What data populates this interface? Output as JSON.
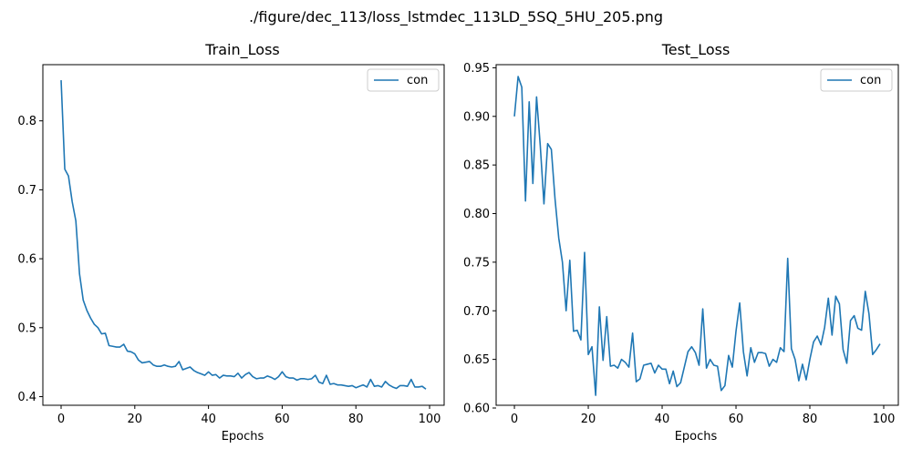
{
  "figure_title": "./figure/dec_113/loss_lstmdec_113LD_5SQ_5HU_205.png",
  "chart_data": [
    {
      "type": "line",
      "title": "Train_Loss",
      "xlabel": "Epochs",
      "ylabel": "",
      "xlim": [
        -4.95,
        103.95
      ],
      "ylim": [
        0.3875,
        0.8815
      ],
      "xticks": [
        0,
        20,
        40,
        60,
        80,
        100
      ],
      "yticks": [
        0.4,
        0.5,
        0.6,
        0.7,
        0.8
      ],
      "ytick_labels": [
        "0.4",
        "0.5",
        "0.6",
        "0.7",
        "0.8"
      ],
      "legend_position": "upper right",
      "line_color": "#1f77b4",
      "series": [
        {
          "name": "con",
          "x": [
            0,
            1,
            2,
            3,
            4,
            5,
            6,
            7,
            8,
            9,
            10,
            11,
            12,
            13,
            14,
            15,
            16,
            17,
            18,
            19,
            20,
            21,
            22,
            23,
            24,
            25,
            26,
            27,
            28,
            29,
            30,
            31,
            32,
            33,
            34,
            35,
            36,
            37,
            38,
            39,
            40,
            41,
            42,
            43,
            44,
            45,
            46,
            47,
            48,
            49,
            50,
            51,
            52,
            53,
            54,
            55,
            56,
            57,
            58,
            59,
            60,
            61,
            62,
            63,
            64,
            65,
            66,
            67,
            68,
            69,
            70,
            71,
            72,
            73,
            74,
            75,
            76,
            77,
            78,
            79,
            80,
            81,
            82,
            83,
            84,
            85,
            86,
            87,
            88,
            89,
            90,
            91,
            92,
            93,
            94,
            95,
            96,
            97,
            98,
            99
          ],
          "values": [
            0.859,
            0.73,
            0.72,
            0.683,
            0.655,
            0.578,
            0.54,
            0.525,
            0.514,
            0.505,
            0.5,
            0.491,
            0.492,
            0.474,
            0.473,
            0.472,
            0.472,
            0.476,
            0.466,
            0.465,
            0.462,
            0.453,
            0.449,
            0.45,
            0.451,
            0.446,
            0.444,
            0.444,
            0.446,
            0.444,
            0.443,
            0.444,
            0.451,
            0.439,
            0.441,
            0.443,
            0.438,
            0.435,
            0.433,
            0.431,
            0.436,
            0.431,
            0.432,
            0.427,
            0.431,
            0.43,
            0.43,
            0.429,
            0.434,
            0.427,
            0.432,
            0.435,
            0.429,
            0.426,
            0.427,
            0.427,
            0.43,
            0.428,
            0.425,
            0.429,
            0.436,
            0.429,
            0.427,
            0.427,
            0.424,
            0.426,
            0.426,
            0.425,
            0.426,
            0.431,
            0.421,
            0.419,
            0.431,
            0.418,
            0.419,
            0.417,
            0.417,
            0.416,
            0.415,
            0.416,
            0.413,
            0.415,
            0.417,
            0.414,
            0.425,
            0.415,
            0.416,
            0.414,
            0.422,
            0.417,
            0.414,
            0.412,
            0.416,
            0.416,
            0.415,
            0.425,
            0.414,
            0.414,
            0.415,
            0.411
          ]
        }
      ]
    },
    {
      "type": "line",
      "title": "Test_Loss",
      "xlabel": "Epochs",
      "ylabel": "",
      "xlim": [
        -4.95,
        103.95
      ],
      "ylim": [
        0.6028,
        0.9532
      ],
      "xticks": [
        0,
        20,
        40,
        60,
        80,
        100
      ],
      "yticks": [
        0.6,
        0.65,
        0.7,
        0.75,
        0.8,
        0.85,
        0.9,
        0.95
      ],
      "ytick_labels": [
        "0.60",
        "0.65",
        "0.70",
        "0.75",
        "0.80",
        "0.85",
        "0.90",
        "0.95"
      ],
      "legend_position": "upper right",
      "line_color": "#1f77b4",
      "series": [
        {
          "name": "con",
          "x": [
            0,
            1,
            2,
            3,
            4,
            5,
            6,
            7,
            8,
            9,
            10,
            11,
            12,
            13,
            14,
            15,
            16,
            17,
            18,
            19,
            20,
            21,
            22,
            23,
            24,
            25,
            26,
            27,
            28,
            29,
            30,
            31,
            32,
            33,
            34,
            35,
            36,
            37,
            38,
            39,
            40,
            41,
            42,
            43,
            44,
            45,
            46,
            47,
            48,
            49,
            50,
            51,
            52,
            53,
            54,
            55,
            56,
            57,
            58,
            59,
            60,
            61,
            62,
            63,
            64,
            65,
            66,
            67,
            68,
            69,
            70,
            71,
            72,
            73,
            74,
            75,
            76,
            77,
            78,
            79,
            80,
            81,
            82,
            83,
            84,
            85,
            86,
            87,
            88,
            89,
            90,
            91,
            92,
            93,
            94,
            95,
            96,
            97,
            98,
            99
          ],
          "values": [
            0.9,
            0.941,
            0.93,
            0.813,
            0.915,
            0.831,
            0.92,
            0.87,
            0.81,
            0.872,
            0.866,
            0.815,
            0.775,
            0.75,
            0.7,
            0.752,
            0.679,
            0.68,
            0.67,
            0.76,
            0.655,
            0.663,
            0.613,
            0.704,
            0.649,
            0.694,
            0.643,
            0.644,
            0.641,
            0.65,
            0.647,
            0.642,
            0.677,
            0.627,
            0.63,
            0.644,
            0.645,
            0.646,
            0.636,
            0.644,
            0.64,
            0.64,
            0.625,
            0.638,
            0.622,
            0.626,
            0.642,
            0.658,
            0.663,
            0.657,
            0.644,
            0.702,
            0.641,
            0.65,
            0.644,
            0.643,
            0.618,
            0.623,
            0.654,
            0.642,
            0.679,
            0.708,
            0.658,
            0.633,
            0.662,
            0.647,
            0.657,
            0.657,
            0.656,
            0.643,
            0.65,
            0.647,
            0.662,
            0.658,
            0.754,
            0.661,
            0.65,
            0.628,
            0.645,
            0.629,
            0.65,
            0.668,
            0.674,
            0.665,
            0.683,
            0.713,
            0.675,
            0.715,
            0.707,
            0.66,
            0.646,
            0.69,
            0.695,
            0.682,
            0.68,
            0.72,
            0.697,
            0.655,
            0.66,
            0.666
          ]
        }
      ]
    }
  ]
}
